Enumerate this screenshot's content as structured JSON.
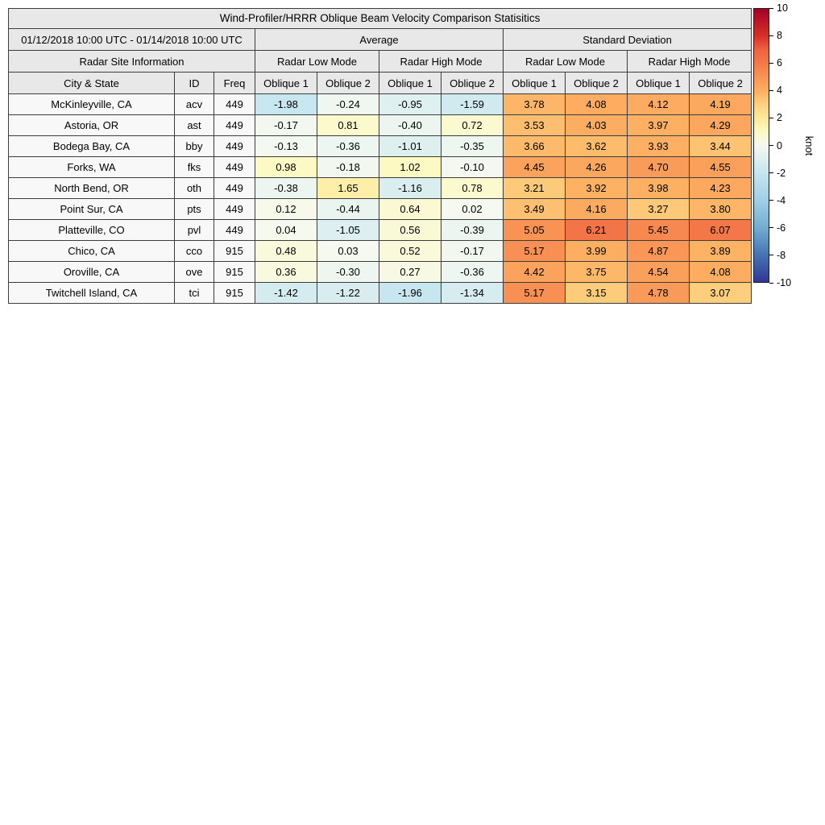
{
  "chart_data": {
    "type": "heatmap",
    "title": "Wind-Profiler/HRRR Oblique Beam Velocity Comparison Statisitics",
    "date_range": "01/12/2018 10:00 UTC - 01/14/2018 10:00 UTC",
    "groups": [
      "Average",
      "Standard Deviation"
    ],
    "site_info_header": "Radar Site Information",
    "mode_headers": [
      "Radar Low Mode",
      "Radar High Mode",
      "Radar Low Mode",
      "Radar High Mode"
    ],
    "columns": [
      "City & State",
      "ID",
      "Freq",
      "Oblique 1",
      "Oblique 2",
      "Oblique 1",
      "Oblique 2",
      "Oblique 1",
      "Oblique 2",
      "Oblique 1",
      "Oblique 2"
    ],
    "rows": [
      {
        "city": "McKinleyville, CA",
        "id": "acv",
        "freq": "449",
        "values": [
          -1.98,
          -0.24,
          -0.95,
          -1.59,
          3.78,
          4.08,
          4.12,
          4.19
        ]
      },
      {
        "city": "Astoria, OR",
        "id": "ast",
        "freq": "449",
        "values": [
          -0.17,
          0.81,
          -0.4,
          0.72,
          3.53,
          4.03,
          3.97,
          4.29
        ]
      },
      {
        "city": "Bodega Bay, CA",
        "id": "bby",
        "freq": "449",
        "values": [
          -0.13,
          -0.36,
          -1.01,
          -0.35,
          3.66,
          3.62,
          3.93,
          3.44
        ]
      },
      {
        "city": "Forks, WA",
        "id": "fks",
        "freq": "449",
        "values": [
          0.98,
          -0.18,
          1.02,
          -0.1,
          4.45,
          4.26,
          4.7,
          4.55
        ]
      },
      {
        "city": "North Bend, OR",
        "id": "oth",
        "freq": "449",
        "values": [
          -0.38,
          1.65,
          -1.16,
          0.78,
          3.21,
          3.92,
          3.98,
          4.23
        ]
      },
      {
        "city": "Point Sur, CA",
        "id": "pts",
        "freq": "449",
        "values": [
          0.12,
          -0.44,
          0.64,
          0.02,
          3.49,
          4.16,
          3.27,
          3.8
        ]
      },
      {
        "city": "Platteville, CO",
        "id": "pvl",
        "freq": "449",
        "values": [
          0.04,
          -1.05,
          0.56,
          -0.39,
          5.05,
          6.21,
          5.45,
          6.07
        ]
      },
      {
        "city": "Chico, CA",
        "id": "cco",
        "freq": "915",
        "values": [
          0.48,
          0.03,
          0.52,
          -0.17,
          5.17,
          3.99,
          4.87,
          3.89
        ]
      },
      {
        "city": "Oroville, CA",
        "id": "ove",
        "freq": "915",
        "values": [
          0.36,
          -0.3,
          0.27,
          -0.36,
          4.42,
          3.75,
          4.54,
          4.08
        ]
      },
      {
        "city": "Twitchell Island, CA",
        "id": "tci",
        "freq": "915",
        "values": [
          -1.42,
          -1.22,
          -1.96,
          -1.34,
          5.17,
          3.15,
          4.78,
          3.07
        ]
      }
    ],
    "colorbar": {
      "label": "knot",
      "min": -10,
      "max": 10,
      "ticks": [
        10,
        8,
        6,
        4,
        2,
        0,
        -2,
        -4,
        -6,
        -8,
        -10
      ]
    }
  },
  "colors": {
    "header_bg": "#e8e8e8",
    "label_bg": "#f8f8f8",
    "border": "#3c3c3c",
    "colormap": [
      {
        "v": -10,
        "c": "#313695"
      },
      {
        "v": -8,
        "c": "#4575b4"
      },
      {
        "v": -6,
        "c": "#74add1"
      },
      {
        "v": -4,
        "c": "#9fcfe6"
      },
      {
        "v": -2,
        "c": "#c6e6f0"
      },
      {
        "v": 0,
        "c": "#f6f9f0"
      },
      {
        "v": 1,
        "c": "#fdf9c4"
      },
      {
        "v": 2,
        "c": "#fee999"
      },
      {
        "v": 3,
        "c": "#fdd17f"
      },
      {
        "v": 4,
        "c": "#fdae61"
      },
      {
        "v": 5,
        "c": "#f99455"
      },
      {
        "v": 6,
        "c": "#f47947"
      },
      {
        "v": 7,
        "c": "#ef6341"
      },
      {
        "v": 8,
        "c": "#d73027"
      },
      {
        "v": 10,
        "c": "#a50026"
      }
    ]
  }
}
